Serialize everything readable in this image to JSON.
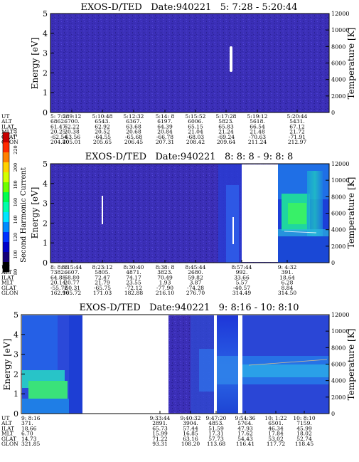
{
  "figure": {
    "colorbar": {
      "label": "Second Harmonic Current",
      "ticks": [
        "240",
        "220",
        "200",
        "180",
        "160",
        "140",
        "120",
        "100",
        "80"
      ],
      "colors": [
        "#c80000",
        "#ff2a00",
        "#ff8000",
        "#ffd200",
        "#d2ff00",
        "#6eff00",
        "#00ff50",
        "#00ffaa",
        "#00e6ff",
        "#008cff",
        "#0032ff",
        "#0000c8",
        "#140078",
        "#000000"
      ]
    }
  },
  "chart_data": [
    {
      "type": "heatmap",
      "title": "EXOS-D/TED   Date:940221   5: 7:28 - 5:20:44",
      "ylabel": "Energy [eV]",
      "y2label": "Temperature [K]",
      "ylim": [
        0,
        5
      ],
      "y2lim": [
        0,
        12000
      ],
      "yticks": [
        "0",
        "1",
        "2",
        "3",
        "4",
        "5"
      ],
      "y2ticks": [
        "0",
        "2000",
        "4000",
        "6000",
        "8000",
        "10000",
        "12000"
      ],
      "data_gaps": [],
      "row_labels": [
        "UT",
        "ALT",
        "ILAT",
        "MLT",
        "GLAT",
        "GLON"
      ],
      "columns": [
        [
          "5: 7:28",
          "6862.",
          "61.47",
          "20.25",
          "-62.54",
          "204.40"
        ],
        [
          "5: 9:12",
          "6700.",
          "62.22",
          "20.38",
          "-63.56",
          "205.01"
        ],
        [
          "5:10:48",
          "6543.",
          "62.92",
          "20.52",
          "-64.55",
          "205.65"
        ],
        [
          "5:12:32",
          "6367.",
          "63.68",
          "20.68",
          "-65.68",
          "206.45"
        ],
        [
          "5:14: 8",
          "6197.",
          "64.39",
          "20.84",
          "-66.78",
          "207.31"
        ],
        [
          "5:15:52",
          "6006.",
          "65.15",
          "21.04",
          "-68.03",
          "208.42"
        ],
        [
          "5:17:28",
          "5823.",
          "65.83",
          "21.24",
          "-69.24",
          "209.64"
        ],
        [
          "5:19:12",
          "5618.",
          "66.54",
          "21.48",
          "-70.63",
          "211.24"
        ],
        [
          "5:20:44",
          "5431.",
          "67.12",
          "21.72",
          "-71.91",
          "212.97"
        ]
      ]
    },
    {
      "type": "heatmap",
      "title": "EXOS-D/TED   Date:940221   8: 8: 8 - 9: 8: 8",
      "ylabel": "Energy [eV]",
      "y2label": "Temperature [K]",
      "ylim": [
        0,
        5
      ],
      "y2lim": [
        0,
        12000
      ],
      "yticks": [
        "0",
        "1",
        "2",
        "3",
        "4",
        "5"
      ],
      "y2ticks": [
        "0",
        "2000",
        "4000",
        "6000",
        "8000",
        "10000",
        "12000"
      ],
      "data_gaps": [
        [
          8.16,
          8.91
        ]
      ],
      "row_labels": [
        "UT",
        "ALT",
        "ILAT",
        "MLT",
        "GLAT",
        "GLON"
      ],
      "columns": [
        [
          "8: 8: 8",
          "7382.",
          "64.88",
          "20.14",
          "-55.72",
          "162.90"
        ],
        [
          "8:15:44",
          "6607.",
          "68.80",
          "20.77",
          "-60.31",
          "165.72"
        ],
        [
          "8:23:12",
          "5805.",
          "72.47",
          "21.79",
          "-65.75",
          "171.03"
        ],
        [
          "8:30:40",
          "4871.",
          "74.17",
          "23.55",
          "-72.12",
          "182.88"
        ],
        [
          "8:38: 8",
          "3823.",
          "70.49",
          "1.93",
          "-77.90",
          "216.10"
        ],
        [
          "8:45:44",
          "2680.",
          "59.82",
          "3.87",
          "-74.28",
          "276.70"
        ],
        [
          "8:57:44",
          "992.",
          "33.66",
          "5.57",
          "-40.57",
          "314.49"
        ],
        [
          "9: 4:32",
          "391.",
          "18.64",
          "6.28",
          "8.84",
          "314.50"
        ]
      ]
    },
    {
      "type": "heatmap",
      "title": "EXOS-D/TED   Date:940221   9: 8:16 - 10: 8:10",
      "ylabel": "Energy [eV]",
      "y2label": "Temperature [K]",
      "ylim": [
        0,
        5
      ],
      "y2lim": [
        0,
        12000
      ],
      "yticks": [
        "0",
        "1",
        "2",
        "3",
        "4",
        "5"
      ],
      "y2ticks": [
        "0",
        "2000",
        "4000",
        "6000",
        "8000",
        "10000",
        "12000"
      ],
      "data_gaps": [
        [
          9.16,
          9.55
        ],
        [
          9.77,
          9.8
        ],
        [
          9.86,
          9.88
        ]
      ],
      "row_labels": [
        "UT",
        "ALT",
        "ILAT",
        "MLT",
        "GLAT",
        "GLON"
      ],
      "columns": [
        [
          "9: 8:16",
          "371.",
          "18.66",
          "6.70",
          "14.73",
          "321.85"
        ],
        [
          "9:33:44",
          "2891.",
          "65.73",
          "15.99",
          "71.22",
          "93.31"
        ],
        [
          "9:40:32",
          "3904.",
          "57.44",
          "16.85",
          "63.16",
          "108.20"
        ],
        [
          "9:47:20",
          "4853.",
          "51.59",
          "17.31",
          "57.73",
          "113.68"
        ],
        [
          "9:54:36",
          "5764.",
          "47.93",
          "17.62",
          "54.43",
          "116.41"
        ],
        [
          "10: 1:22",
          "6501.",
          "46.34",
          "17.84",
          "53.02",
          "117.72"
        ],
        [
          "10: 8:10",
          "7159.",
          "45.99",
          "18.02",
          "52.74",
          "118.45"
        ]
      ]
    }
  ]
}
